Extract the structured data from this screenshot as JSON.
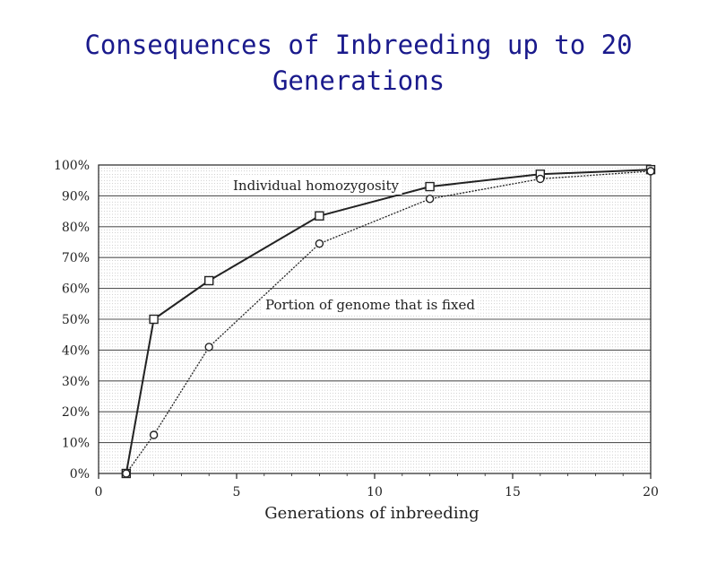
{
  "slide": {
    "title_line1": "Consequences of Inbreeding up to 20",
    "title_line2": "Generations"
  },
  "colors": {
    "title": "#1a1a8c",
    "ink": "#222222",
    "grid": "#555555"
  },
  "chart_data": {
    "type": "line",
    "title": "Consequences of Inbreeding up to 20 Generations",
    "xlabel": "Generations of inbreeding",
    "ylabel": "",
    "xlim": [
      0,
      20
    ],
    "ylim": [
      0,
      100
    ],
    "xticks": [
      0,
      5,
      10,
      15,
      20
    ],
    "xtick_labels": [
      "0",
      "5",
      "10",
      "15",
      "20"
    ],
    "yticks": [
      0,
      10,
      20,
      30,
      40,
      50,
      60,
      70,
      80,
      90,
      100
    ],
    "ytick_labels": [
      "0%",
      "10%",
      "20%",
      "30%",
      "40%",
      "50%",
      "60%",
      "70%",
      "80%",
      "90%",
      "100%"
    ],
    "grid": true,
    "series": [
      {
        "name": "Individual homozygosity",
        "marker": "square",
        "line": "solid",
        "x": [
          1,
          2,
          4,
          8,
          12,
          16,
          20
        ],
        "y": [
          0,
          50,
          62.5,
          83.5,
          93,
          97,
          98.5
        ]
      },
      {
        "name": "Portion of genome that is fixed",
        "marker": "circle",
        "line": "dotted",
        "x": [
          1,
          2,
          4,
          8,
          12,
          16,
          20
        ],
        "y": [
          0,
          12.5,
          41,
          74.5,
          89,
          95.5,
          98
        ]
      }
    ]
  }
}
